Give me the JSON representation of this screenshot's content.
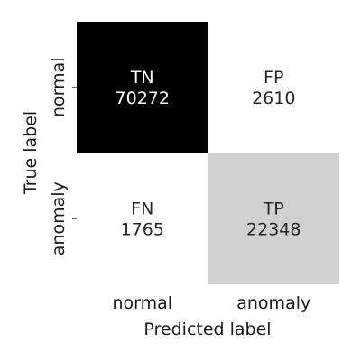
{
  "chart_data": {
    "type": "heatmap",
    "title": "",
    "xlabel": "Predicted label",
    "ylabel": "True label",
    "x_categories": [
      "normal",
      "anomaly"
    ],
    "y_categories": [
      "normal",
      "anomaly"
    ],
    "cells": [
      {
        "row": 0,
        "col": 0,
        "code": "TN",
        "value": 70272,
        "fill": "#000000",
        "text_color": "#ffffff"
      },
      {
        "row": 0,
        "col": 1,
        "code": "FP",
        "value": 2610,
        "fill": "#fdfdfd",
        "text_color": "#262626"
      },
      {
        "row": 1,
        "col": 0,
        "code": "FN",
        "value": 1765,
        "fill": "#ffffff",
        "text_color": "#262626"
      },
      {
        "row": 1,
        "col": 1,
        "code": "TP",
        "value": 22348,
        "fill": "#d0d0d0",
        "text_color": "#262626"
      }
    ],
    "grid": false,
    "colorbar": false
  }
}
